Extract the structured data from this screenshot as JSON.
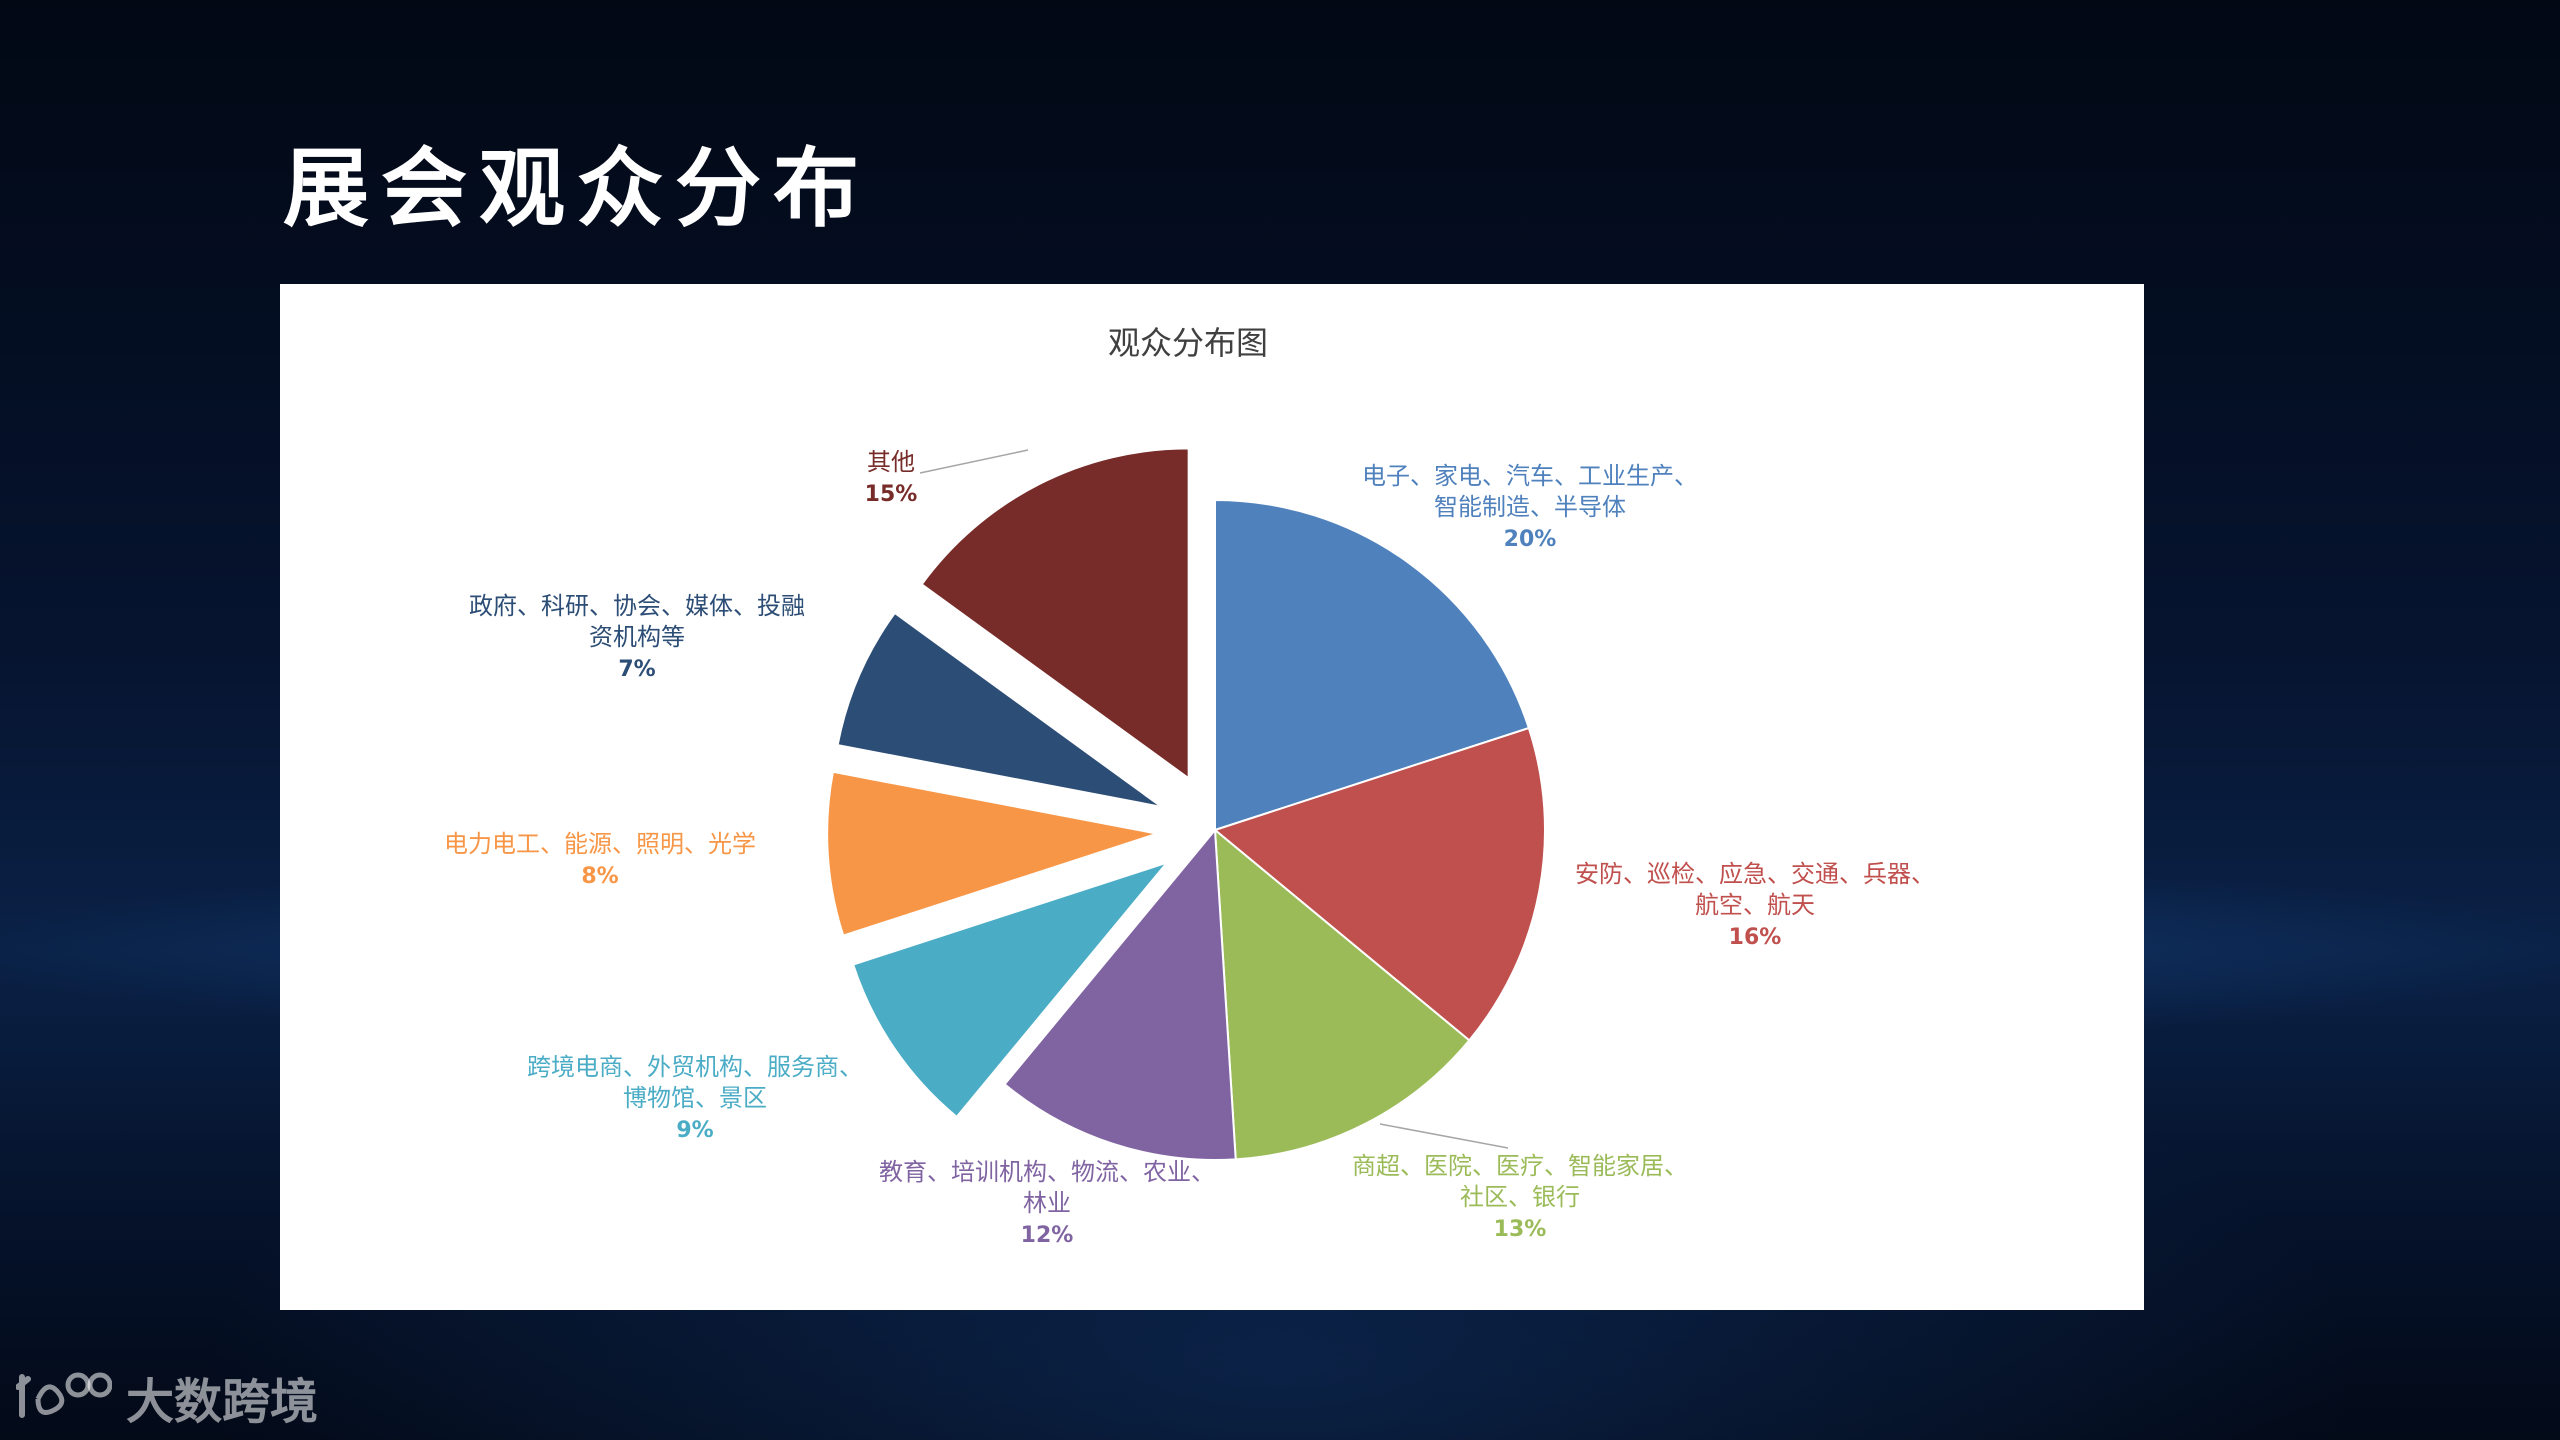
{
  "page": {
    "title": "展会观众分布"
  },
  "brand": {
    "logo_text": "大数跨境",
    "logo_mark": "logo-mark-icon"
  },
  "chart_data": {
    "type": "pie",
    "title": "观众分布图",
    "slices": [
      {
        "label_lines": [
          "电子、家电、汽车、工业生产、",
          "智能制造、半导体"
        ],
        "value": 20,
        "pct_label": "20%",
        "color": "#4F81BD",
        "exploded": false
      },
      {
        "label_lines": [
          "安防、巡检、应急、交通、兵器、",
          "航空、航天"
        ],
        "value": 16,
        "pct_label": "16%",
        "color": "#C0504D",
        "exploded": false
      },
      {
        "label_lines": [
          "商超、医院、医疗、智能家居、",
          "社区、银行"
        ],
        "value": 13,
        "pct_label": "13%",
        "color": "#9BBB59",
        "exploded": false
      },
      {
        "label_lines": [
          "教育、培训机构、物流、农业、",
          "林业"
        ],
        "value": 12,
        "pct_label": "12%",
        "color": "#8064A2",
        "exploded": false
      },
      {
        "label_lines": [
          "跨境电商、外贸机构、服务商、",
          "博物馆、景区"
        ],
        "value": 9,
        "pct_label": "9%",
        "color": "#4BACC6",
        "exploded": true
      },
      {
        "label_lines": [
          "电力电工、能源、照明、光学"
        ],
        "value": 8,
        "pct_label": "8%",
        "color": "#F79646",
        "exploded": true
      },
      {
        "label_lines": [
          "政府、科研、协会、媒体、投融",
          "资机构等"
        ],
        "value": 7,
        "pct_label": "7%",
        "color": "#2C4D75",
        "exploded": true
      },
      {
        "label_lines": [
          "其他"
        ],
        "value": 15,
        "pct_label": "15%",
        "color": "#772C2A",
        "exploded": true
      }
    ],
    "legend": "none"
  }
}
